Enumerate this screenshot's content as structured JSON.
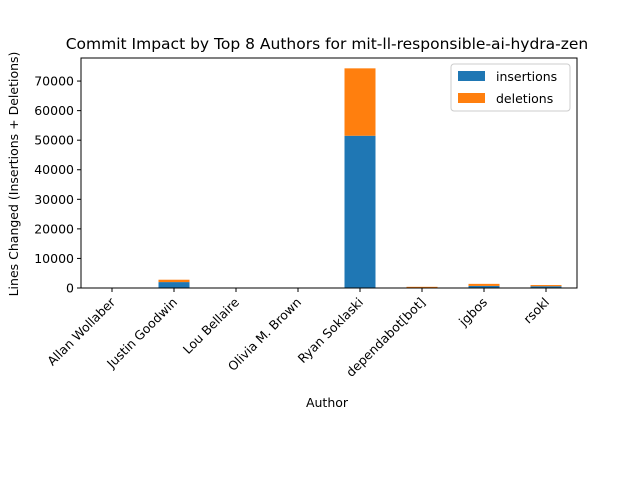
{
  "chart_data": {
    "type": "bar",
    "stacked": true,
    "title": "Commit Impact by Top 8 Authors for mit-ll-responsible-ai-hydra-zen",
    "xlabel": "Author",
    "ylabel": "Lines Changed (Insertions + Deletions)",
    "categories": [
      "Allan Wollaber",
      "Justin Goodwin",
      "Lou Bellaire",
      "Olivia M. Brown",
      "Ryan Soklaski",
      "dependabot[bot]",
      "jgbos",
      "rsokl"
    ],
    "series": [
      {
        "name": "insertions",
        "color": "#1f77b4",
        "values": [
          20,
          2000,
          10,
          10,
          51500,
          150,
          700,
          600
        ]
      },
      {
        "name": "deletions",
        "color": "#ff7f0e",
        "values": [
          5,
          800,
          5,
          5,
          22800,
          250,
          700,
          400
        ]
      }
    ],
    "yticks": [
      0,
      10000,
      20000,
      30000,
      40000,
      50000,
      60000,
      70000
    ],
    "ylim": [
      0,
      77800
    ],
    "legend_position": "top-right",
    "grid": false
  }
}
